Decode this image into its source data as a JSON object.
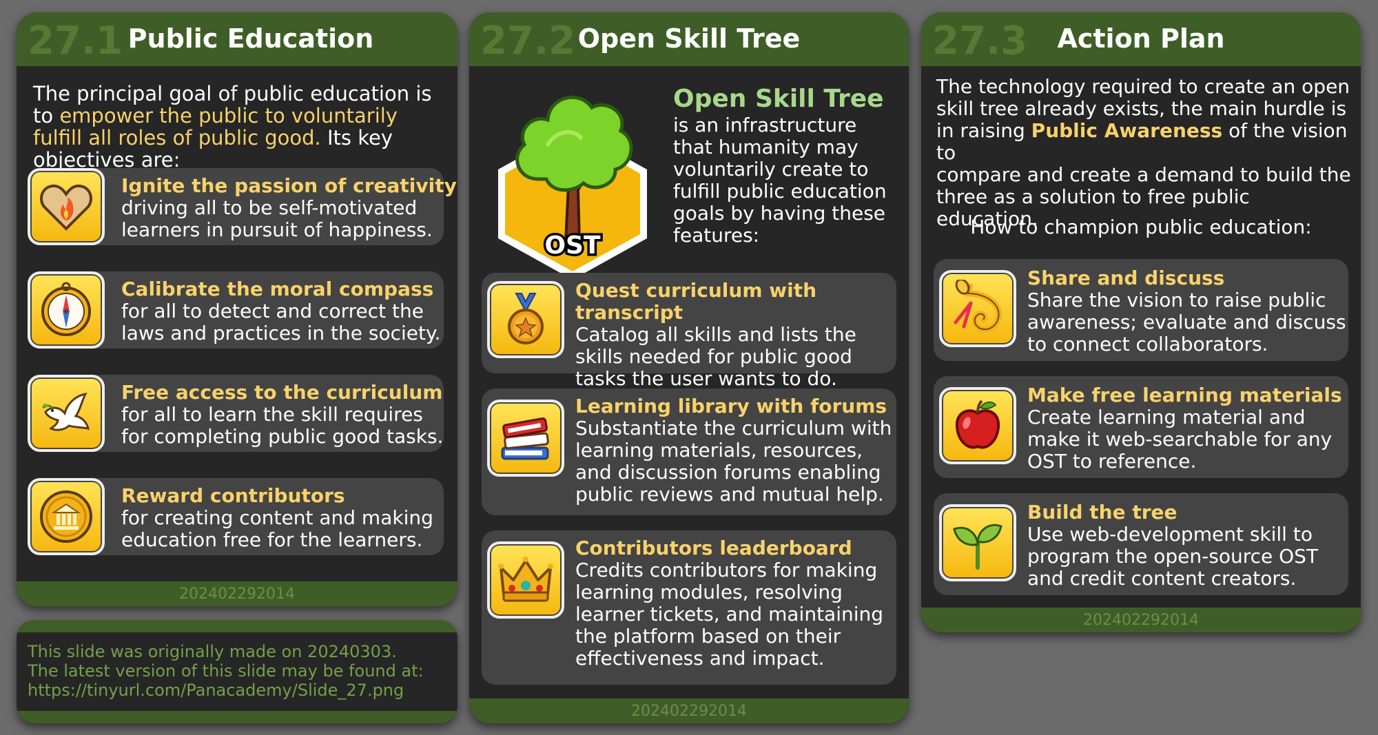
{
  "panel1": {
    "number": "27.1",
    "title": "Public Education",
    "intro_prefix": "The principal goal of public education is to ",
    "intro_highlight": "empower the public to voluntarily fulfill all roles of public good.",
    "intro_suffix": " Its key objectives are:",
    "items": [
      {
        "icon": "heart-flame-icon",
        "title": "Ignite the passion of creativity",
        "line1": "driving all to be self-motivated",
        "line2": "learners in pursuit of happiness."
      },
      {
        "icon": "compass-icon",
        "title": "Calibrate the moral compass",
        "line1": "for all to detect and correct the",
        "line2": "laws and practices in the society."
      },
      {
        "icon": "dove-icon",
        "title": "Free access to the curriculum",
        "line1": "for all to learn the skill requires",
        "line2": "for completing public good tasks."
      },
      {
        "icon": "coin-icon",
        "title": "Reward contributors",
        "line1": "for creating content and making",
        "line2": "education free for the learners."
      }
    ],
    "footer": "202402292014"
  },
  "note": {
    "line1": "This slide was originally made on 20240303.",
    "line2": "The latest version of this slide may be found at:",
    "line3": "https://tinyurl.com/Panacademy/Slide_27.png"
  },
  "panel2": {
    "number": "27.2",
    "title": "Open Skill Tree",
    "logo_text": "OST",
    "heading": "Open Skill Tree",
    "desc_lines": [
      "is an infrastructure",
      "that humanity may",
      "voluntarily create to",
      "fulfill public education",
      "goals by having these",
      "features:"
    ],
    "items": [
      {
        "icon": "medal-icon",
        "title": "Quest curriculum with transcript",
        "lines": [
          "Catalog all skills and lists the",
          "skills needed for public good",
          "tasks the user wants to do."
        ]
      },
      {
        "icon": "books-icon",
        "title": "Learning library with forums",
        "lines": [
          "Substantiate the curriculum with",
          "learning materials, resources,",
          "and discussion forums enabling",
          "public reviews and mutual help."
        ]
      },
      {
        "icon": "crown-icon",
        "title": "Contributors leaderboard",
        "lines": [
          "Credits contributors for making",
          "learning modules, resolving",
          "learner tickets, and maintaining",
          "the platform based on their",
          "effectiveness and impact."
        ]
      }
    ],
    "footer": "202402292014"
  },
  "panel3": {
    "number": "27.3",
    "title": "Action Plan",
    "intro_line1": "The technology required to create an open",
    "intro_line2": "skill tree already exists, the main hurdle is",
    "intro_line3_prefix": "in raising ",
    "intro_line3_highlight": "Public Awareness",
    "intro_line3_suffix": " of the vision to",
    "intro_line4": "compare and create a demand to build the",
    "intro_line5": "three as a solution to free public education.",
    "subheading": "How to champion public education:",
    "items": [
      {
        "icon": "horn-icon",
        "title": "Share and discuss",
        "lines": [
          "Share the vision to raise public",
          "awareness; evaluate and discuss",
          "to connect collaborators."
        ]
      },
      {
        "icon": "apple-icon",
        "title": "Make free learning materials",
        "lines": [
          "Create learning material and",
          "make it web-searchable for any",
          "OST to reference."
        ]
      },
      {
        "icon": "sprout-icon",
        "title": "Build the tree",
        "lines": [
          "Use web-development skill to",
          "program the open-source OST",
          "and credit content creators."
        ]
      }
    ],
    "footer": "202402292014"
  }
}
